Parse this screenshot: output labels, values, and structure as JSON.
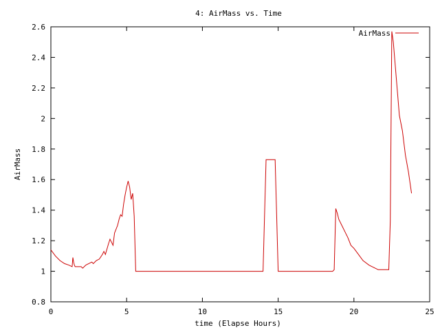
{
  "chart_data": {
    "type": "line",
    "title": "4: AirMass vs. Time",
    "xlabel": "time (Elapse Hours)",
    "ylabel": "AirMass",
    "xlim": [
      0,
      25
    ],
    "ylim": [
      0.8,
      2.6
    ],
    "xticks": [
      "0",
      "5",
      "10",
      "15",
      "20",
      "25"
    ],
    "yticks": [
      "0.8",
      "1",
      "1.2",
      "1.4",
      "1.6",
      "1.8",
      "2",
      "2.2",
      "2.4",
      "2.6"
    ],
    "grid": false,
    "legend_position": "top-right",
    "series": [
      {
        "name": "AirMass",
        "color": "#cc0000",
        "x": [
          0.0,
          0.3,
          0.6,
          0.9,
          1.2,
          1.4,
          1.45,
          1.5,
          1.55,
          1.6,
          2.0,
          2.1,
          2.3,
          2.5,
          2.7,
          2.8,
          3.0,
          3.2,
          3.4,
          3.5,
          3.6,
          3.8,
          3.9,
          4.0,
          4.1,
          4.2,
          4.4,
          4.5,
          4.6,
          4.7,
          4.8,
          4.9,
          5.0,
          5.1,
          5.2,
          5.3,
          5.4,
          5.5,
          5.6,
          5.7,
          6.0,
          8.0,
          10.0,
          12.0,
          13.0,
          14.0,
          14.2,
          14.5,
          14.8,
          15.0,
          16.0,
          17.0,
          18.0,
          18.6,
          18.7,
          18.8,
          18.9,
          19.0,
          19.2,
          19.4,
          19.6,
          19.8,
          20.0,
          20.3,
          20.6,
          21.0,
          21.4,
          21.6,
          22.0,
          22.3,
          22.4,
          22.5,
          22.6,
          22.8,
          22.9,
          23.0,
          23.2,
          23.4,
          23.6,
          23.8
        ],
        "y": [
          1.14,
          1.1,
          1.07,
          1.05,
          1.04,
          1.03,
          1.09,
          1.06,
          1.04,
          1.03,
          1.03,
          1.02,
          1.04,
          1.05,
          1.06,
          1.05,
          1.07,
          1.08,
          1.11,
          1.13,
          1.11,
          1.18,
          1.21,
          1.19,
          1.17,
          1.25,
          1.3,
          1.34,
          1.37,
          1.36,
          1.44,
          1.5,
          1.55,
          1.59,
          1.55,
          1.47,
          1.51,
          1.36,
          1.0,
          1.0,
          1.0,
          1.0,
          1.0,
          1.0,
          1.0,
          1.0,
          1.73,
          1.73,
          1.73,
          1.0,
          1.0,
          1.0,
          1.0,
          1.0,
          1.01,
          1.41,
          1.38,
          1.34,
          1.3,
          1.26,
          1.22,
          1.17,
          1.15,
          1.11,
          1.07,
          1.04,
          1.02,
          1.01,
          1.01,
          1.01,
          1.33,
          2.57,
          2.5,
          2.26,
          2.14,
          2.02,
          1.92,
          1.76,
          1.65,
          1.51
        ]
      }
    ]
  }
}
